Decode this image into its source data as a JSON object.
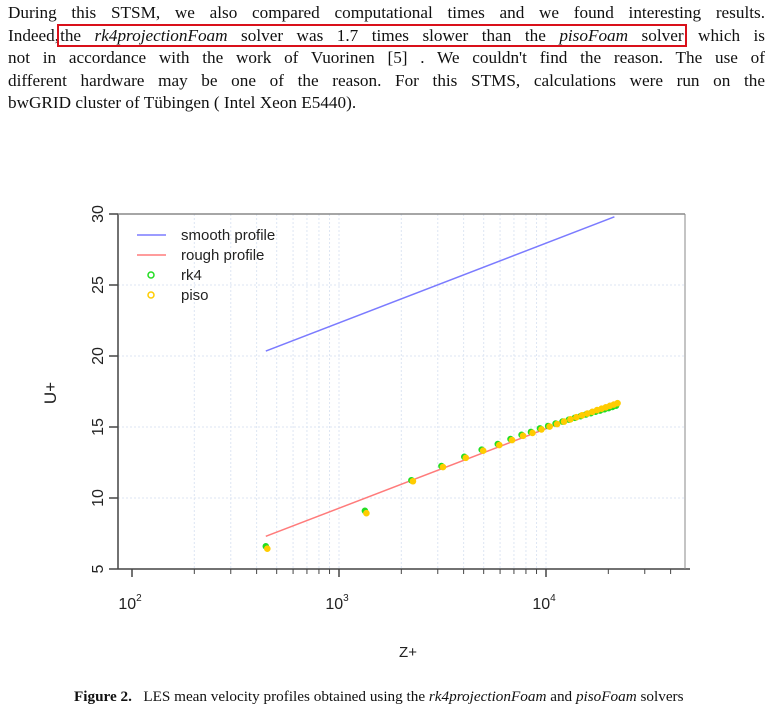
{
  "paragraph": {
    "line1": "During this STSM, we also compared computational times and we found interesting results.",
    "line2_pre": "Indeed,",
    "highlight": {
      "part1": "the ",
      "solver1": "rk4projectionFoam",
      "part2": " solver was 1.7 times slower than the ",
      "solver2": "pisoFoam",
      "part3": " solver"
    },
    "line2_post": "which is",
    "line3": "not in accordance with the work of Vuorinen [5] . We couldn't find the reason. The use of",
    "line4": "different hardware may be one of the reason. For this STMS, calculations were run on the",
    "line5": "bwGRID cluster of Tübingen ( Intel Xeon E5440).",
    "highlight_color": "#d9101a"
  },
  "chart_data": {
    "type": "scatter",
    "xlabel": "Z+",
    "ylabel": "U+",
    "xscale": "log",
    "xlim": [
      100,
      50000
    ],
    "ylim": [
      5,
      30
    ],
    "xticks": [
      {
        "base": "10",
        "exp": "2"
      },
      {
        "base": "10",
        "exp": "3"
      },
      {
        "base": "10",
        "exp": "4"
      }
    ],
    "yticks": [
      "5",
      "10",
      "15",
      "20",
      "25",
      "30"
    ],
    "grid": true,
    "legend_position": "top-left",
    "lines": [
      {
        "name": "smooth profile",
        "color": "#7b7bff",
        "x": [
          443,
          21400
        ],
        "y": [
          20.35,
          29.8
        ]
      },
      {
        "name": "rough profile",
        "color": "#ff7b7b",
        "x": [
          443,
          22000
        ],
        "y": [
          7.3,
          16.8
        ]
      }
    ],
    "series": [
      {
        "name": "rk4",
        "color": "#22dd22",
        "marker": "o",
        "x": [
          443,
          1334,
          2238,
          3126,
          4030,
          4890,
          5850,
          6740,
          7620,
          8460,
          9350,
          10240,
          11130,
          12020,
          12910,
          13800,
          14690,
          15580,
          16470,
          17360,
          18250,
          19140,
          20030,
          20920,
          21800
        ],
        "y": [
          6.6,
          9.1,
          11.25,
          12.25,
          12.9,
          13.4,
          13.8,
          14.15,
          14.45,
          14.65,
          14.9,
          15.07,
          15.24,
          15.38,
          15.52,
          15.65,
          15.76,
          15.88,
          15.97,
          16.08,
          16.16,
          16.25,
          16.33,
          16.41,
          16.5
        ]
      },
      {
        "name": "piso",
        "color": "#ffcc00",
        "marker": "o",
        "x": [
          443,
          1334,
          2238,
          3126,
          4030,
          4890,
          5850,
          6740,
          7620,
          8460,
          9350,
          10240,
          11130,
          12020,
          12910,
          13800,
          14690,
          15580,
          16470,
          17360,
          18250,
          19140,
          20030,
          20920,
          21800
        ],
        "y": [
          6.5,
          9.0,
          11.25,
          12.25,
          12.9,
          13.4,
          13.8,
          14.15,
          14.45,
          14.65,
          14.9,
          15.1,
          15.28,
          15.45,
          15.61,
          15.76,
          15.89,
          16.02,
          16.14,
          16.26,
          16.36,
          16.46,
          16.56,
          16.65,
          16.75
        ]
      }
    ]
  },
  "caption": {
    "label": "Figure 2.",
    "text1": "LES mean velocity profiles obtained using the ",
    "solver1": "rk4projectionFoam",
    "text2": " and ",
    "solver2": "pisoFoam",
    "text3": " solvers"
  }
}
